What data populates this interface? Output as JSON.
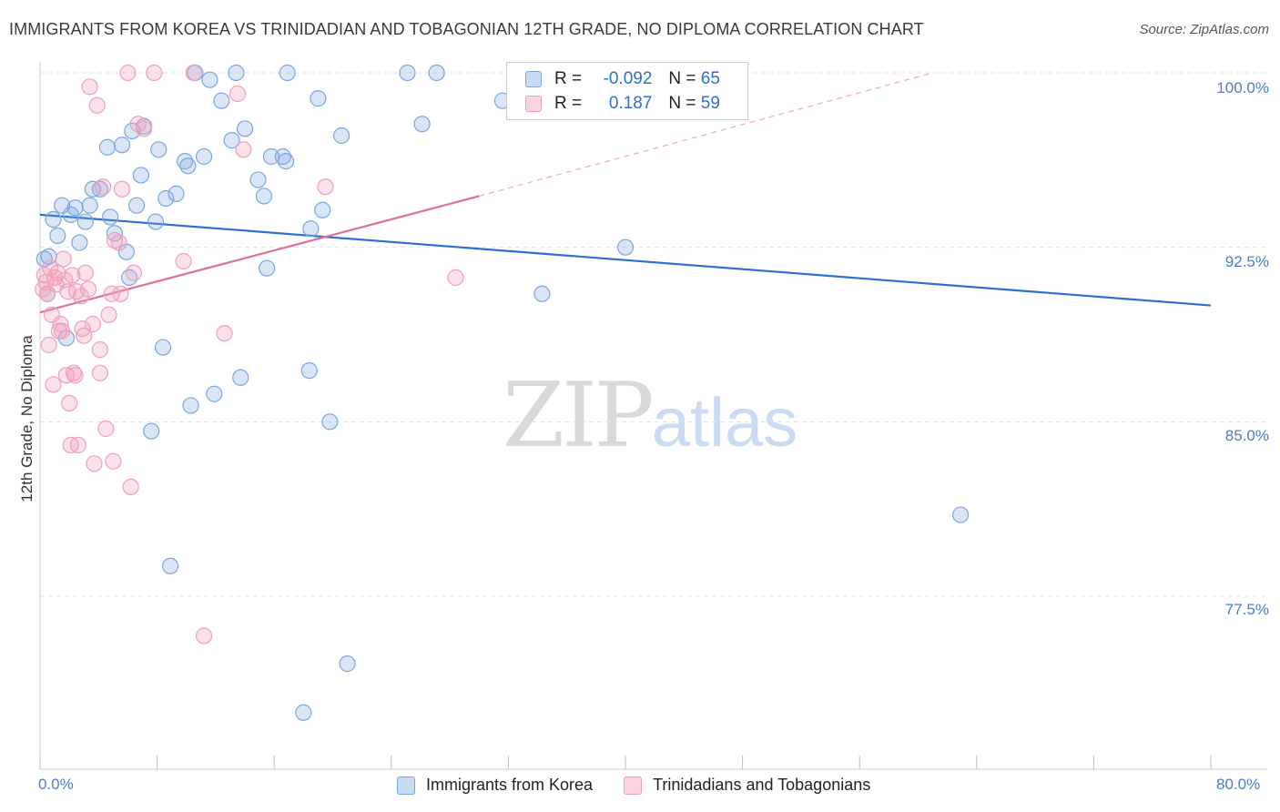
{
  "title": "IMMIGRANTS FROM KOREA VS TRINIDADIAN AND TOBAGONIAN 12TH GRADE, NO DIPLOMA CORRELATION CHART",
  "source": "Source: ZipAtlas.com",
  "watermark": {
    "zip": "ZIP",
    "atlas": "atlas"
  },
  "legend": {
    "korea": {
      "r_label": "R =",
      "r_value": "-0.092",
      "n_label": "N =",
      "n_value": "65"
    },
    "trini": {
      "r_label": "R =",
      "r_value": "0.187",
      "n_label": "N =",
      "n_value": "59"
    }
  },
  "colors": {
    "korea": "#7aa6e0",
    "korea_line": "#2e6fd1",
    "trini": "#f0a0b8",
    "trini_line": "#e06f98",
    "tick_text": "#4a7cc8"
  },
  "chart_data": {
    "type": "scatter",
    "title": "IMMIGRANTS FROM KOREA VS TRINIDADIAN AND TOBAGONIAN 12TH GRADE, NO DIPLOMA CORRELATION CHART",
    "xlabel": "",
    "ylabel": "12th Grade, No Diploma",
    "xlim": [
      0,
      80
    ],
    "ylim": [
      71,
      101.5
    ],
    "x_tick_labels": [
      "0.0%",
      "80.0%"
    ],
    "y_ticks": [
      77.5,
      85.0,
      92.5,
      100.0
    ],
    "y_tick_labels": [
      "77.5%",
      "85.0%",
      "92.5%",
      "100.0%"
    ],
    "grid": true,
    "legend_position": "bottom",
    "series": [
      {
        "name": "Immigrants from Korea",
        "color": "#7aa6e0",
        "trend": {
          "x": [
            0,
            80
          ],
          "y": [
            93.9,
            90.0
          ],
          "dashed_extension": false
        },
        "points": [
          [
            0.5,
            90.5
          ],
          [
            0.6,
            92.1
          ],
          [
            0.9,
            93.7
          ],
          [
            1.2,
            93.0
          ],
          [
            1.5,
            94.3
          ],
          [
            1.8,
            88.6
          ],
          [
            2.1,
            93.9
          ],
          [
            2.4,
            94.2
          ],
          [
            2.7,
            92.7
          ],
          [
            3.1,
            93.6
          ],
          [
            3.4,
            94.3
          ],
          [
            3.6,
            95.0
          ],
          [
            4.1,
            95.0
          ],
          [
            4.6,
            96.8
          ],
          [
            4.8,
            93.8
          ],
          [
            5.1,
            93.1
          ],
          [
            5.6,
            96.9
          ],
          [
            5.9,
            92.3
          ],
          [
            6.1,
            91.2
          ],
          [
            6.3,
            97.5
          ],
          [
            6.6,
            94.3
          ],
          [
            6.9,
            95.6
          ],
          [
            7.1,
            97.7
          ],
          [
            7.6,
            84.6
          ],
          [
            7.9,
            93.6
          ],
          [
            8.1,
            96.7
          ],
          [
            8.4,
            88.2
          ],
          [
            8.6,
            94.6
          ],
          [
            8.9,
            78.8
          ],
          [
            9.3,
            94.8
          ],
          [
            9.9,
            96.2
          ],
          [
            10.1,
            96.0
          ],
          [
            10.3,
            85.7
          ],
          [
            10.6,
            100.0
          ],
          [
            11.2,
            96.4
          ],
          [
            11.6,
            99.7
          ],
          [
            11.9,
            86.2
          ],
          [
            12.4,
            98.8
          ],
          [
            13.1,
            97.1
          ],
          [
            13.4,
            100.0
          ],
          [
            13.7,
            86.9
          ],
          [
            14.0,
            97.6
          ],
          [
            14.9,
            95.4
          ],
          [
            15.3,
            94.7
          ],
          [
            15.5,
            91.6
          ],
          [
            15.8,
            96.4
          ],
          [
            16.6,
            96.4
          ],
          [
            16.8,
            96.2
          ],
          [
            16.9,
            100.0
          ],
          [
            18.5,
            93.3
          ],
          [
            18.4,
            87.2
          ],
          [
            19.0,
            98.9
          ],
          [
            19.3,
            94.1
          ],
          [
            19.8,
            85.0
          ],
          [
            20.6,
            97.3
          ],
          [
            21.0,
            74.6
          ],
          [
            18.0,
            72.5
          ],
          [
            25.1,
            100.0
          ],
          [
            26.1,
            97.8
          ],
          [
            27.1,
            100.0
          ],
          [
            31.6,
            98.8
          ],
          [
            34.3,
            90.5
          ],
          [
            40.0,
            92.5
          ],
          [
            62.9,
            81.0
          ],
          [
            0.3,
            92.0
          ]
        ]
      },
      {
        "name": "Trinidadians and Tobagonians",
        "color": "#f0a0b8",
        "trend": {
          "x": [
            0,
            30
          ],
          "y": [
            89.7,
            94.7
          ],
          "dashed_extension": true,
          "dashed_to": [
            61,
            100.0
          ]
        },
        "points": [
          [
            0.2,
            90.7
          ],
          [
            0.4,
            91.0
          ],
          [
            0.5,
            90.5
          ],
          [
            0.6,
            88.3
          ],
          [
            0.7,
            91.6
          ],
          [
            0.8,
            89.6
          ],
          [
            0.9,
            86.6
          ],
          [
            1.0,
            91.2
          ],
          [
            1.1,
            90.9
          ],
          [
            1.2,
            91.4
          ],
          [
            1.3,
            88.9
          ],
          [
            1.5,
            88.9
          ],
          [
            1.6,
            92.0
          ],
          [
            1.7,
            91.1
          ],
          [
            1.8,
            87.0
          ],
          [
            1.9,
            90.6
          ],
          [
            2.0,
            85.8
          ],
          [
            2.1,
            84.0
          ],
          [
            2.2,
            91.3
          ],
          [
            2.3,
            87.1
          ],
          [
            2.5,
            90.6
          ],
          [
            2.6,
            84.0
          ],
          [
            2.8,
            90.4
          ],
          [
            2.9,
            89.0
          ],
          [
            3.1,
            91.4
          ],
          [
            3.3,
            90.7
          ],
          [
            3.4,
            99.4
          ],
          [
            3.6,
            89.2
          ],
          [
            3.7,
            83.2
          ],
          [
            3.9,
            98.6
          ],
          [
            4.1,
            88.1
          ],
          [
            4.1,
            87.1
          ],
          [
            4.3,
            95.1
          ],
          [
            4.5,
            84.7
          ],
          [
            4.7,
            89.6
          ],
          [
            4.9,
            90.5
          ],
          [
            5.0,
            83.3
          ],
          [
            5.1,
            92.8
          ],
          [
            5.4,
            92.7
          ],
          [
            5.5,
            90.5
          ],
          [
            5.6,
            95.0
          ],
          [
            6.0,
            100.0
          ],
          [
            6.2,
            82.2
          ],
          [
            6.4,
            91.4
          ],
          [
            6.7,
            97.8
          ],
          [
            7.1,
            97.6
          ],
          [
            7.8,
            100.0
          ],
          [
            9.8,
            91.9
          ],
          [
            10.5,
            100.0
          ],
          [
            11.2,
            75.8
          ],
          [
            12.6,
            88.8
          ],
          [
            13.5,
            99.1
          ],
          [
            13.9,
            96.7
          ],
          [
            19.5,
            95.1
          ],
          [
            28.4,
            91.2
          ],
          [
            1.4,
            89.2
          ],
          [
            2.4,
            87.0
          ],
          [
            0.3,
            91.3
          ],
          [
            3.0,
            88.7
          ]
        ]
      }
    ]
  },
  "bottom_legend": [
    {
      "label": "Immigrants from Korea"
    },
    {
      "label": "Trinidadians and Tobagonians"
    }
  ]
}
